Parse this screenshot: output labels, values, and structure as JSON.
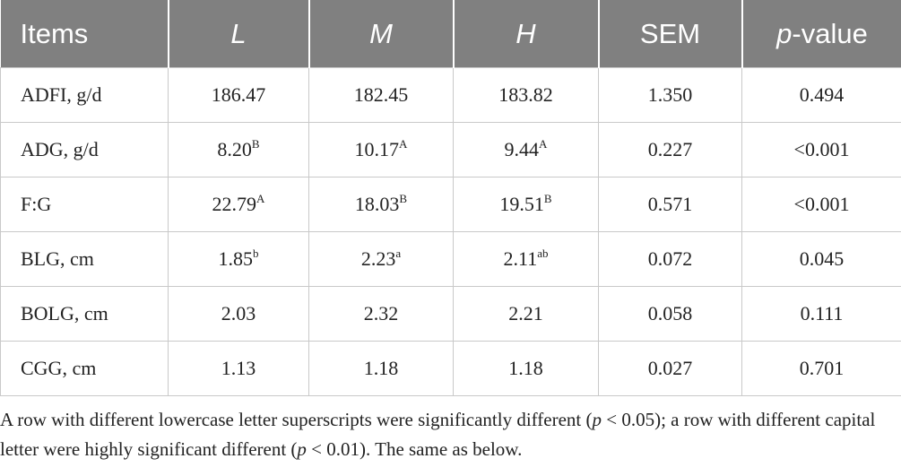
{
  "table": {
    "header": [
      "Items",
      [
        {
          "text": "L",
          "italic": true
        }
      ],
      [
        {
          "text": "M",
          "italic": true
        }
      ],
      [
        {
          "text": "H",
          "italic": true
        }
      ],
      "SEM",
      [
        {
          "text": "p",
          "italic": true
        },
        {
          "text": "-value"
        }
      ]
    ],
    "rows": [
      [
        "ADFI, g/d",
        "186.47",
        "182.45",
        "183.82",
        "1.350",
        "0.494"
      ],
      [
        "ADG, g/d",
        [
          {
            "text": "8.20"
          },
          {
            "text": "B",
            "sup": true
          }
        ],
        [
          {
            "text": "10.17"
          },
          {
            "text": "A",
            "sup": true
          }
        ],
        [
          {
            "text": "9.44"
          },
          {
            "text": "A",
            "sup": true
          }
        ],
        "0.227",
        "<0.001"
      ],
      [
        "F:G",
        [
          {
            "text": "22.79"
          },
          {
            "text": "A",
            "sup": true
          }
        ],
        [
          {
            "text": "18.03"
          },
          {
            "text": "B",
            "sup": true
          }
        ],
        [
          {
            "text": "19.51"
          },
          {
            "text": "B",
            "sup": true
          }
        ],
        "0.571",
        "<0.001"
      ],
      [
        "BLG, cm",
        [
          {
            "text": "1.85"
          },
          {
            "text": "b",
            "sup": true
          }
        ],
        [
          {
            "text": "2.23"
          },
          {
            "text": "a",
            "sup": true
          }
        ],
        [
          {
            "text": "2.11"
          },
          {
            "text": "ab",
            "sup": true
          }
        ],
        "0.072",
        "0.045"
      ],
      [
        "BOLG, cm",
        "2.03",
        "2.32",
        "2.21",
        "0.058",
        "0.111"
      ],
      [
        "CGG, cm",
        "1.13",
        "1.18",
        "1.18",
        "0.027",
        "0.701"
      ]
    ]
  },
  "footnote": [
    {
      "text": "A row with different lowercase letter superscripts were significantly different ("
    },
    {
      "text": "p",
      "italic": true
    },
    {
      "text": " < 0.05); a row with different capital letter were highly significant different ("
    },
    {
      "text": "p",
      "italic": true
    },
    {
      "text": " < 0.01). The same as below."
    }
  ]
}
